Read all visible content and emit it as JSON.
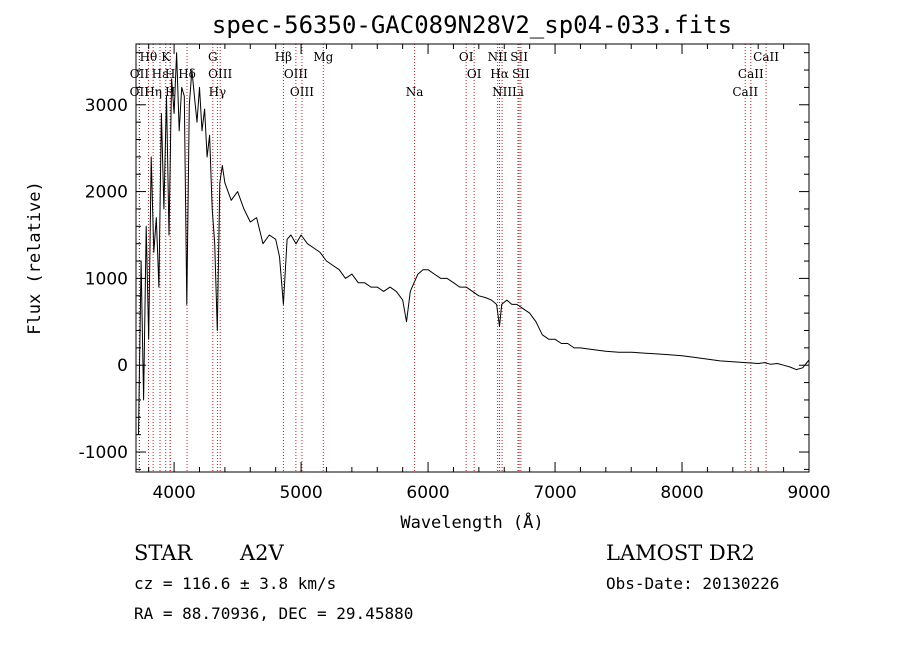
{
  "chart_data": {
    "type": "line",
    "title": "spec-56350-GAC089N28V2_sp04-033.fits",
    "xlabel": "Wavelength (Å)",
    "ylabel": "Flux (relative)",
    "xlim": [
      3700,
      9000
    ],
    "ylim": [
      -1230,
      3700
    ],
    "xticks": [
      4000,
      5000,
      6000,
      7000,
      8000,
      9000
    ],
    "yticks": [
      -1000,
      0,
      1000,
      2000,
      3000
    ],
    "grid": false,
    "line_color": "#000000",
    "marker_color": "#b22222",
    "series": [
      {
        "x": [
          3720,
          3740,
          3760,
          3780,
          3800,
          3820,
          3840,
          3860,
          3880,
          3900,
          3920,
          3940,
          3960,
          3980,
          4000,
          4020,
          4040,
          4060,
          4080,
          4100,
          4120,
          4140,
          4160,
          4180,
          4200,
          4220,
          4240,
          4260,
          4280,
          4300,
          4320,
          4340,
          4360,
          4380,
          4400,
          4450,
          4500,
          4550,
          4600,
          4650,
          4700,
          4750,
          4800,
          4830,
          4861,
          4890,
          4920,
          4960,
          5000,
          5050,
          5100,
          5150,
          5200,
          5250,
          5300,
          5350,
          5400,
          5450,
          5500,
          5550,
          5600,
          5650,
          5700,
          5750,
          5800,
          5830,
          5860,
          5890,
          5920,
          5960,
          6000,
          6050,
          6100,
          6150,
          6200,
          6250,
          6300,
          6350,
          6400,
          6450,
          6500,
          6540,
          6563,
          6580,
          6620,
          6660,
          6700,
          6750,
          6800,
          6850,
          6900,
          6950,
          7000,
          7050,
          7100,
          7150,
          7200,
          7300,
          7400,
          7500,
          7600,
          7700,
          7800,
          7900,
          8000,
          8100,
          8200,
          8300,
          8400,
          8500,
          8600,
          8650,
          8700,
          8750,
          8800,
          8850,
          8900,
          8950,
          9000
        ],
        "y": [
          -800,
          1200,
          -400,
          1600,
          300,
          2400,
          1300,
          1700,
          900,
          2900,
          1800,
          3100,
          1500,
          3300,
          2900,
          3600,
          2700,
          3200,
          3100,
          700,
          3000,
          3400,
          3100,
          2800,
          3200,
          2700,
          2950,
          2400,
          2650,
          1800,
          1400,
          400,
          2100,
          2300,
          2100,
          1900,
          2000,
          1800,
          1650,
          1700,
          1400,
          1500,
          1450,
          1250,
          700,
          1450,
          1500,
          1400,
          1500,
          1400,
          1350,
          1300,
          1200,
          1150,
          1100,
          1000,
          1050,
          950,
          950,
          900,
          900,
          850,
          900,
          850,
          750,
          500,
          850,
          950,
          1050,
          1100,
          1100,
          1050,
          1000,
          1000,
          950,
          900,
          900,
          850,
          800,
          780,
          750,
          700,
          450,
          700,
          750,
          700,
          700,
          650,
          600,
          500,
          350,
          300,
          300,
          250,
          250,
          200,
          200,
          180,
          160,
          150,
          150,
          140,
          130,
          120,
          110,
          90,
          70,
          50,
          40,
          30,
          20,
          30,
          10,
          20,
          0,
          -20,
          -50,
          -30,
          60
        ]
      }
    ],
    "line_markers": [
      {
        "label": "Hθ",
        "x": 3798,
        "row": 0
      },
      {
        "label": "K",
        "x": 3934,
        "row": 0
      },
      {
        "label": "OII",
        "x": 3727,
        "row": 1
      },
      {
        "label": "Hε",
        "x": 3889,
        "row": 1
      },
      {
        "label": "H",
        "x": 3969,
        "row": 1
      },
      {
        "label": "Hδ",
        "x": 4102,
        "row": 1
      },
      {
        "label": "OII",
        "x": 3726,
        "row": 2
      },
      {
        "label": "Hη",
        "x": 3835,
        "row": 2
      },
      {
        "label": "H",
        "x": 3970,
        "row": 2
      },
      {
        "label": "G",
        "x": 4305,
        "row": 0
      },
      {
        "label": "OIII",
        "x": 4363,
        "row": 1
      },
      {
        "label": "Hγ",
        "x": 4341,
        "row": 2
      },
      {
        "label": "Hβ",
        "x": 4861,
        "row": 0
      },
      {
        "label": "Mg",
        "x": 5175,
        "row": 0
      },
      {
        "label": "OIII",
        "x": 4959,
        "row": 1
      },
      {
        "label": "OIII",
        "x": 5007,
        "row": 2
      },
      {
        "label": "Na",
        "x": 5894,
        "row": 2
      },
      {
        "label": "OI",
        "x": 6300,
        "row": 0
      },
      {
        "label": "OI",
        "x": 6363,
        "row": 1
      },
      {
        "label": "NII",
        "x": 6548,
        "row": 0
      },
      {
        "label": "SII",
        "x": 6717,
        "row": 0
      },
      {
        "label": "Hα",
        "x": 6563,
        "row": 1
      },
      {
        "label": "SII",
        "x": 6731,
        "row": 1
      },
      {
        "label": "NII",
        "x": 6583,
        "row": 2
      },
      {
        "label": "Li",
        "x": 6708,
        "row": 2
      },
      {
        "label": "CaII",
        "x": 8662,
        "row": 0
      },
      {
        "label": "CaII",
        "x": 8542,
        "row": 1
      },
      {
        "label": "CaII",
        "x": 8498,
        "row": 2
      }
    ]
  },
  "info": {
    "object_class": "STAR",
    "subclass": "A2V",
    "survey": "LAMOST DR2",
    "redshift": "cz = 116.6 ± 3.8 km/s",
    "obs_date": "Obs-Date: 20130226",
    "coords": "RA =  88.70936, DEC =  29.45880"
  }
}
